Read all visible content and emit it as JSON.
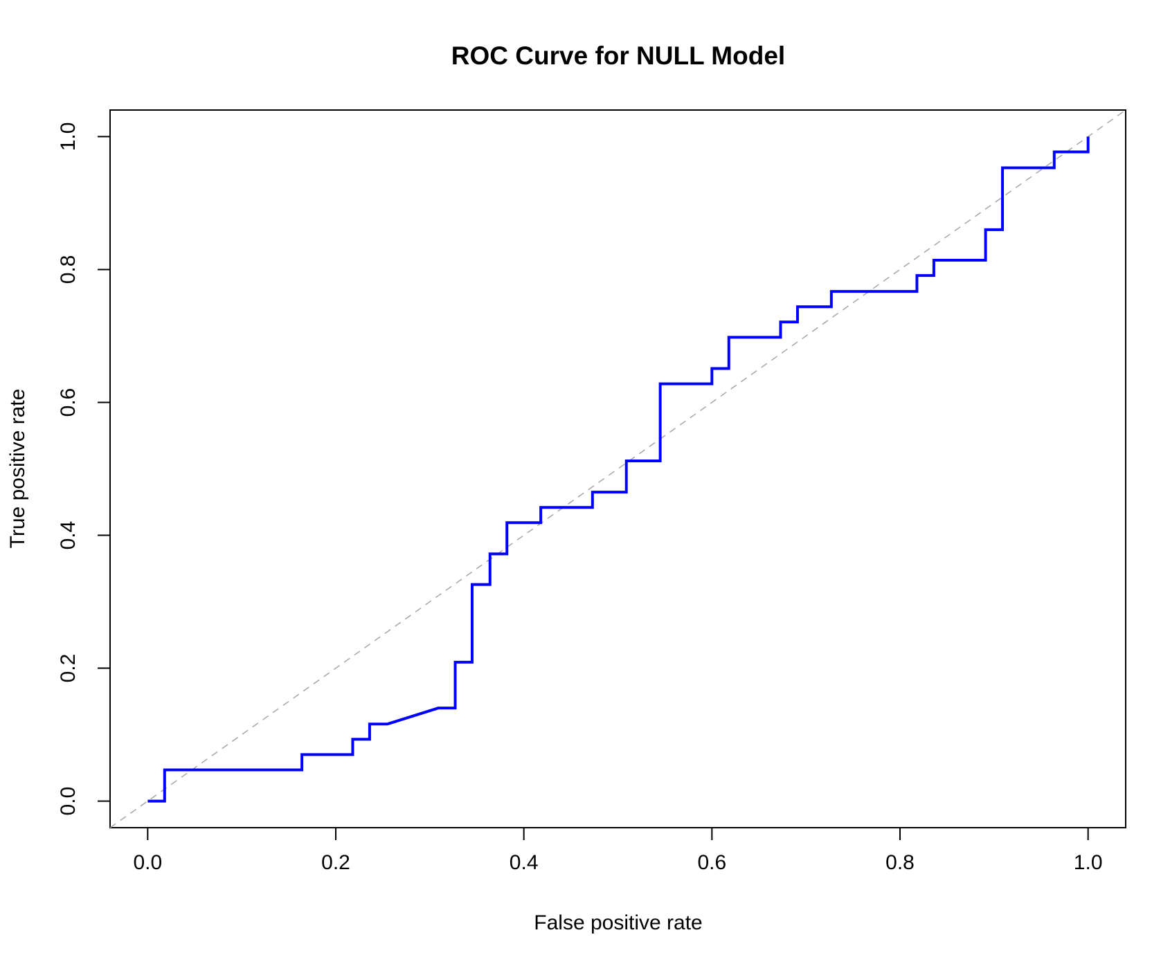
{
  "chart_data": {
    "type": "line",
    "title": "ROC Curve for NULL Model",
    "xlabel": "False positive rate",
    "ylabel": "True positive rate",
    "xlim": [
      -0.04,
      1.04
    ],
    "ylim": [
      -0.04,
      1.04
    ],
    "x_ticks": [
      0.0,
      0.2,
      0.4,
      0.6,
      0.8,
      1.0
    ],
    "y_ticks": [
      0.0,
      0.2,
      0.4,
      0.6,
      0.8,
      1.0
    ],
    "x_tick_labels": [
      "0.0",
      "0.2",
      "0.4",
      "0.6",
      "0.8",
      "1.0"
    ],
    "y_tick_labels": [
      "0.0",
      "0.2",
      "0.4",
      "0.6",
      "0.8",
      "1.0"
    ],
    "grid": false,
    "legend": "none",
    "series": [
      {
        "kind": "roc-curve",
        "color": "#0000ff",
        "x": [
          0.0,
          0.018,
          0.018,
          0.164,
          0.164,
          0.218,
          0.218,
          0.236,
          0.236,
          0.255,
          0.309,
          0.327,
          0.327,
          0.345,
          0.345,
          0.364,
          0.364,
          0.382,
          0.382,
          0.418,
          0.418,
          0.473,
          0.473,
          0.509,
          0.509,
          0.545,
          0.545,
          0.6,
          0.6,
          0.618,
          0.618,
          0.673,
          0.673,
          0.691,
          0.691,
          0.727,
          0.727,
          0.818,
          0.818,
          0.836,
          0.836,
          0.891,
          0.891,
          0.909,
          0.909,
          0.964,
          0.964,
          1.0,
          1.0
        ],
        "y": [
          0.0,
          0.0,
          0.047,
          0.047,
          0.07,
          0.07,
          0.093,
          0.093,
          0.116,
          0.116,
          0.14,
          0.14,
          0.209,
          0.209,
          0.326,
          0.326,
          0.372,
          0.372,
          0.419,
          0.419,
          0.442,
          0.442,
          0.465,
          0.465,
          0.512,
          0.512,
          0.628,
          0.628,
          0.651,
          0.651,
          0.698,
          0.698,
          0.721,
          0.721,
          0.744,
          0.744,
          0.767,
          0.767,
          0.791,
          0.791,
          0.814,
          0.814,
          0.86,
          0.86,
          0.953,
          0.953,
          0.977,
          0.977,
          1.0
        ]
      },
      {
        "kind": "reference-diagonal",
        "color": "#aaaaaa",
        "dashed": true,
        "x": [
          -0.04,
          1.04
        ],
        "y": [
          -0.04,
          1.04
        ]
      }
    ]
  }
}
